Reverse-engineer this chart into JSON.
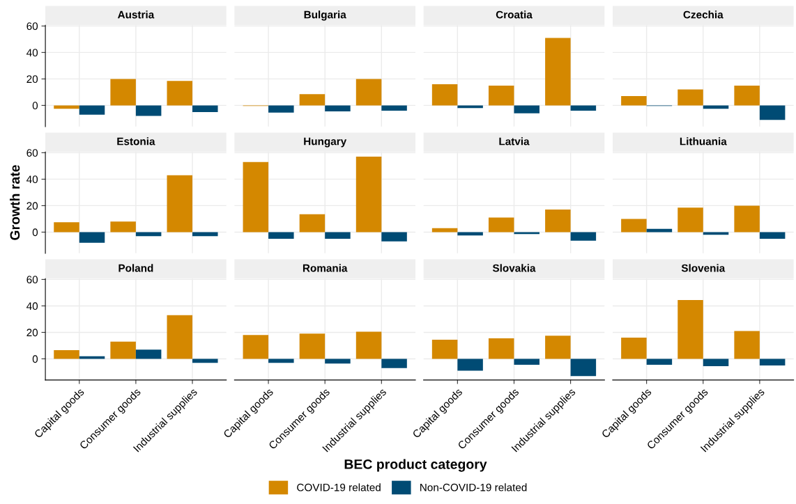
{
  "chart_data": [
    {
      "type": "bar",
      "title": "Austria",
      "legend": "bottom",
      "categories": [
        "Capital goods",
        "Consumer goods",
        "Industrial supplies"
      ],
      "ylim": [
        -16,
        60.6
      ],
      "yticks": [
        0,
        20,
        40,
        60
      ],
      "grid": true,
      "tick_labels": "y",
      "series": [
        {
          "name": "COVID-19 related",
          "color": "#d48800",
          "values": [
            -2.5,
            20,
            18.5
          ]
        },
        {
          "name": "Non-COVID-19 related",
          "color": "#004b74",
          "values": [
            -7,
            -8,
            -5
          ]
        }
      ]
    },
    {
      "type": "bar",
      "title": "Bulgaria",
      "categories": [
        "Capital goods",
        "Consumer goods",
        "Industrial supplies"
      ],
      "ylim": [
        -16,
        60.6
      ],
      "yticks": [
        0,
        20,
        40,
        60
      ],
      "grid": true,
      "tick_labels": false,
      "series": [
        {
          "name": "COVID-19 related",
          "color": "#d48800",
          "values": [
            -0.5,
            8.5,
            20
          ]
        },
        {
          "name": "Non-COVID-19 related",
          "color": "#004b74",
          "values": [
            -5.5,
            -4.5,
            -4
          ]
        }
      ]
    },
    {
      "type": "bar",
      "title": "Croatia",
      "categories": [
        "Capital goods",
        "Consumer goods",
        "Industrial supplies"
      ],
      "ylim": [
        -16,
        60.6
      ],
      "yticks": [
        0,
        20,
        40,
        60
      ],
      "grid": true,
      "tick_labels": false,
      "series": [
        {
          "name": "COVID-19 related",
          "color": "#d48800",
          "values": [
            16,
            15,
            51
          ]
        },
        {
          "name": "Non-COVID-19 related",
          "color": "#004b74",
          "values": [
            -2,
            -6,
            -4
          ]
        }
      ]
    },
    {
      "type": "bar",
      "title": "Czechia",
      "categories": [
        "Capital goods",
        "Consumer goods",
        "Industrial supplies"
      ],
      "ylim": [
        -16,
        60.6
      ],
      "yticks": [
        0,
        20,
        40,
        60
      ],
      "grid": true,
      "tick_labels": false,
      "series": [
        {
          "name": "COVID-19 related",
          "color": "#d48800",
          "values": [
            7,
            12,
            15
          ]
        },
        {
          "name": "Non-COVID-19 related",
          "color": "#004b74",
          "values": [
            -0.5,
            -2.5,
            -11
          ]
        }
      ]
    },
    {
      "type": "bar",
      "title": "Estonia",
      "ylabel": "Growth rate",
      "categories": [
        "Capital goods",
        "Consumer goods",
        "Industrial supplies"
      ],
      "ylim": [
        -16,
        60.6
      ],
      "yticks": [
        0,
        20,
        40,
        60
      ],
      "grid": true,
      "tick_labels": "y",
      "series": [
        {
          "name": "COVID-19 related",
          "color": "#d48800",
          "values": [
            7.5,
            8,
            43
          ]
        },
        {
          "name": "Non-COVID-19 related",
          "color": "#004b74",
          "values": [
            -8,
            -3,
            -3
          ]
        }
      ]
    },
    {
      "type": "bar",
      "title": "Hungary",
      "categories": [
        "Capital goods",
        "Consumer goods",
        "Industrial supplies"
      ],
      "ylim": [
        -16,
        60.6
      ],
      "yticks": [
        0,
        20,
        40,
        60
      ],
      "grid": true,
      "tick_labels": false,
      "series": [
        {
          "name": "COVID-19 related",
          "color": "#d48800",
          "values": [
            53,
            13.5,
            57
          ]
        },
        {
          "name": "Non-COVID-19 related",
          "color": "#004b74",
          "values": [
            -5,
            -5,
            -7
          ]
        }
      ]
    },
    {
      "type": "bar",
      "title": "Latvia",
      "categories": [
        "Capital goods",
        "Consumer goods",
        "Industrial supplies"
      ],
      "ylim": [
        -16,
        60.6
      ],
      "yticks": [
        0,
        20,
        40,
        60
      ],
      "grid": true,
      "tick_labels": false,
      "series": [
        {
          "name": "COVID-19 related",
          "color": "#d48800",
          "values": [
            3,
            11,
            17
          ]
        },
        {
          "name": "Non-COVID-19 related",
          "color": "#004b74",
          "values": [
            -2.5,
            -1.5,
            -6.5
          ]
        }
      ]
    },
    {
      "type": "bar",
      "title": "Lithuania",
      "categories": [
        "Capital goods",
        "Consumer goods",
        "Industrial supplies"
      ],
      "ylim": [
        -16,
        60.6
      ],
      "yticks": [
        0,
        20,
        40,
        60
      ],
      "grid": true,
      "tick_labels": false,
      "series": [
        {
          "name": "COVID-19 related",
          "color": "#d48800",
          "values": [
            10,
            18.5,
            20
          ]
        },
        {
          "name": "Non-COVID-19 related",
          "color": "#004b74",
          "values": [
            2.5,
            -2,
            -5
          ]
        }
      ]
    },
    {
      "type": "bar",
      "title": "Poland",
      "categories": [
        "Capital goods",
        "Consumer goods",
        "Industrial supplies"
      ],
      "ylim": [
        -16,
        60.6
      ],
      "yticks": [
        0,
        20,
        40,
        60
      ],
      "grid": true,
      "series": [
        {
          "name": "COVID-19 related",
          "color": "#d48800",
          "values": [
            6.5,
            13,
            33
          ]
        },
        {
          "name": "Non-COVID-19 related",
          "color": "#004b74",
          "values": [
            2,
            7,
            -3
          ]
        }
      ]
    },
    {
      "type": "bar",
      "title": "Romania",
      "xlabel": "BEC product category",
      "categories": [
        "Capital goods",
        "Consumer goods",
        "Industrial supplies"
      ],
      "ylim": [
        -16,
        60.6
      ],
      "yticks": [
        0,
        20,
        40,
        60
      ],
      "grid": true,
      "tick_labels": "x",
      "series": [
        {
          "name": "COVID-19 related",
          "color": "#d48800",
          "values": [
            18,
            19,
            20.5
          ]
        },
        {
          "name": "Non-COVID-19 related",
          "color": "#004b74",
          "values": [
            -3,
            -3.5,
            -7
          ]
        }
      ]
    },
    {
      "type": "bar",
      "title": "Slovakia",
      "categories": [
        "Capital goods",
        "Consumer goods",
        "Industrial supplies"
      ],
      "ylim": [
        -16,
        60.6
      ],
      "yticks": [
        0,
        20,
        40,
        60
      ],
      "grid": true,
      "tick_labels": "x",
      "series": [
        {
          "name": "COVID-19 related",
          "color": "#d48800",
          "values": [
            14.5,
            15.5,
            17.5
          ]
        },
        {
          "name": "Non-COVID-19 related",
          "color": "#004b74",
          "values": [
            -9,
            -4.5,
            -13
          ]
        }
      ]
    },
    {
      "type": "bar",
      "title": "Slovenia",
      "categories": [
        "Capital goods",
        "Consumer goods",
        "Industrial supplies"
      ],
      "ylim": [
        -16,
        60.6
      ],
      "yticks": [
        0,
        20,
        40,
        60
      ],
      "grid": true,
      "tick_labels": "x",
      "series": [
        {
          "name": "COVID-19 related",
          "color": "#d48800",
          "values": [
            16,
            44.5,
            21
          ]
        },
        {
          "name": "Non-COVID-19 related",
          "color": "#004b74",
          "values": [
            -4.5,
            -5.5,
            -5
          ]
        }
      ]
    }
  ]
}
